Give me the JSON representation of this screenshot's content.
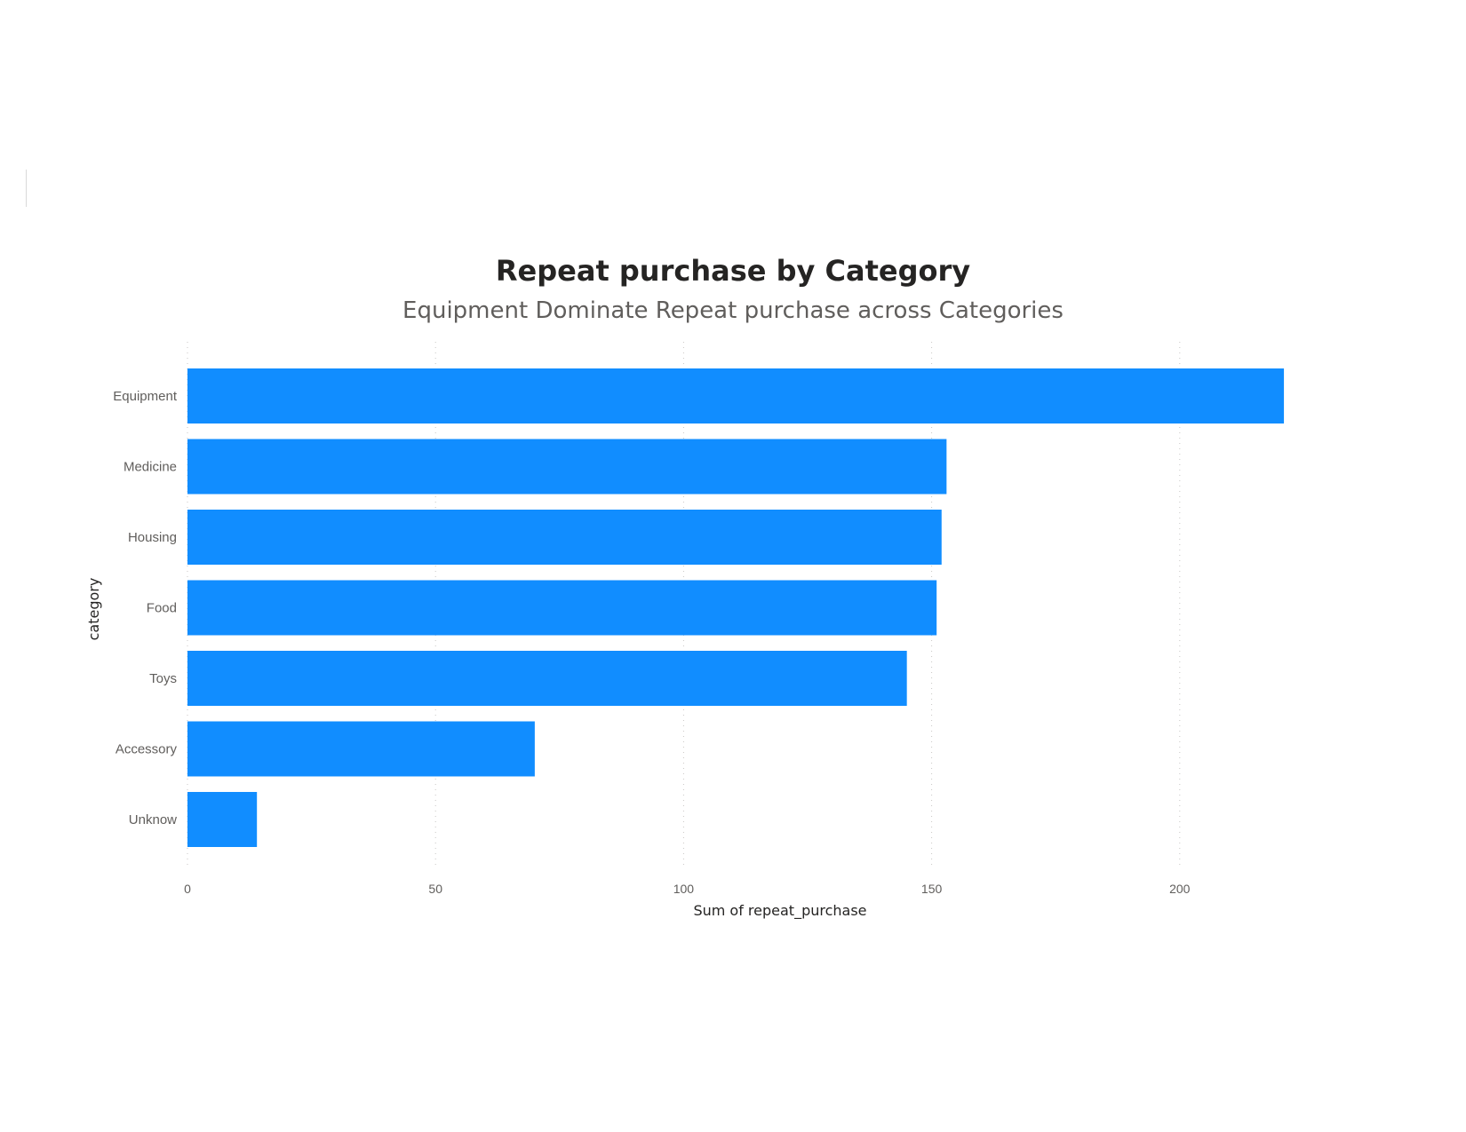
{
  "chart_data": {
    "type": "bar",
    "orientation": "horizontal",
    "title": "Repeat purchase by Category",
    "subtitle": "Equipment Dominate Repeat purchase across Categories",
    "xlabel": "Sum of repeat_purchase",
    "ylabel": "category",
    "categories": [
      "Equipment",
      "Medicine",
      "Housing",
      "Food",
      "Toys",
      "Accessory",
      "Unknow"
    ],
    "values": [
      221,
      153,
      152,
      151,
      145,
      70,
      14
    ],
    "xticks": [
      0,
      50,
      100,
      150,
      200
    ],
    "xlim": [
      0,
      240
    ],
    "grid": true,
    "bar_color": "#118dff"
  }
}
